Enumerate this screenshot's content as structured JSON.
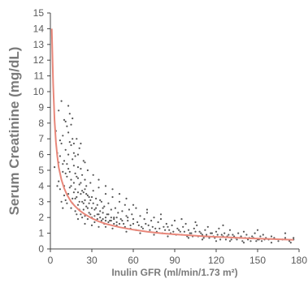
{
  "chart_data": {
    "type": "scatter",
    "title": "",
    "xlabel": "Inulin GFR (ml/min/1.73 m²)",
    "ylabel": "Serum Creatinine (mg/dL)",
    "xlim": [
      0,
      180
    ],
    "ylim": [
      0,
      15
    ],
    "x_ticks": [
      0,
      30,
      60,
      90,
      120,
      150,
      180
    ],
    "y_ticks": [
      0,
      1,
      2,
      3,
      4,
      5,
      6,
      7,
      8,
      9,
      10,
      11,
      12,
      13,
      14,
      15
    ],
    "grid": false,
    "legend": "none",
    "series": [
      {
        "type": "scatter",
        "color": "#555555",
        "points": [
          [
            3,
            5.2
          ],
          [
            4,
            7.5
          ],
          [
            5,
            6.1
          ],
          [
            6,
            4.3
          ],
          [
            6,
            8.8
          ],
          [
            7,
            5.9
          ],
          [
            7,
            3.8
          ],
          [
            8,
            9.4
          ],
          [
            8,
            6.7
          ],
          [
            9,
            4.9
          ],
          [
            9,
            7.2
          ],
          [
            10,
            5.6
          ],
          [
            10,
            3.4
          ],
          [
            11,
            8.1
          ],
          [
            11,
            6.3
          ],
          [
            12,
            4.6
          ],
          [
            12,
            2.9
          ],
          [
            13,
            7.4
          ],
          [
            13,
            5.1
          ],
          [
            14,
            3.9
          ],
          [
            14,
            6.8
          ],
          [
            15,
            4.4
          ],
          [
            15,
            2.6
          ],
          [
            16,
            5.7
          ],
          [
            16,
            8.3
          ],
          [
            17,
            3.6
          ],
          [
            17,
            6.1
          ],
          [
            18,
            4.8
          ],
          [
            18,
            2.4
          ],
          [
            19,
            7.0
          ],
          [
            19,
            3.3
          ],
          [
            20,
            5.2
          ],
          [
            20,
            2.8
          ],
          [
            21,
            4.1
          ],
          [
            21,
            6.4
          ],
          [
            22,
            3.5
          ],
          [
            22,
            2.2
          ],
          [
            23,
            4.7
          ],
          [
            23,
            3.0
          ],
          [
            24,
            5.6
          ],
          [
            24,
            2.5
          ],
          [
            25,
            3.8
          ],
          [
            25,
            4.4
          ],
          [
            26,
            2.7
          ],
          [
            27,
            3.4
          ],
          [
            27,
            5.0
          ],
          [
            28,
            2.3
          ],
          [
            29,
            3.1
          ],
          [
            29,
            4.2
          ],
          [
            30,
            2.6
          ],
          [
            31,
            3.7
          ],
          [
            32,
            2.1
          ],
          [
            33,
            3.2
          ],
          [
            34,
            2.8
          ],
          [
            35,
            3.9
          ],
          [
            36,
            2.4
          ],
          [
            37,
            3.0
          ],
          [
            38,
            1.9
          ],
          [
            39,
            2.7
          ],
          [
            40,
            3.5
          ],
          [
            41,
            2.2
          ],
          [
            42,
            2.9
          ],
          [
            43,
            1.8
          ],
          [
            44,
            2.5
          ],
          [
            45,
            3.3
          ],
          [
            46,
            2.0
          ],
          [
            47,
            2.6
          ],
          [
            48,
            1.7
          ],
          [
            49,
            2.3
          ],
          [
            50,
            3.0
          ],
          [
            51,
            1.9
          ],
          [
            52,
            2.4
          ],
          [
            53,
            1.6
          ],
          [
            54,
            2.8
          ],
          [
            55,
            2.1
          ],
          [
            56,
            1.8
          ],
          [
            57,
            2.5
          ],
          [
            58,
            1.5
          ],
          [
            59,
            2.2
          ],
          [
            60,
            1.9
          ],
          [
            62,
            2.6
          ],
          [
            63,
            1.7
          ],
          [
            65,
            2.1
          ],
          [
            66,
            1.4
          ],
          [
            68,
            1.9
          ],
          [
            70,
            2.3
          ],
          [
            71,
            1.5
          ],
          [
            73,
            1.8
          ],
          [
            75,
            2.0
          ],
          [
            76,
            1.3
          ],
          [
            78,
            1.7
          ],
          [
            80,
            1.9
          ],
          [
            82,
            1.4
          ],
          [
            84,
            1.6
          ],
          [
            86,
            1.2
          ],
          [
            88,
            1.5
          ],
          [
            90,
            1.8
          ],
          [
            92,
            1.3
          ],
          [
            94,
            1.1
          ],
          [
            96,
            1.4
          ],
          [
            98,
            1.6
          ],
          [
            100,
            1.2
          ],
          [
            102,
            1.0
          ],
          [
            104,
            1.3
          ],
          [
            106,
            1.5
          ],
          [
            108,
            1.1
          ],
          [
            110,
            0.9
          ],
          [
            112,
            1.2
          ],
          [
            114,
            1.4
          ],
          [
            116,
            1.0
          ],
          [
            118,
            0.8
          ],
          [
            120,
            1.1
          ],
          [
            122,
            1.3
          ],
          [
            124,
            0.9
          ],
          [
            126,
            1.0
          ],
          [
            128,
            0.8
          ],
          [
            130,
            1.2
          ],
          [
            132,
            0.9
          ],
          [
            134,
            0.7
          ],
          [
            136,
            1.0
          ],
          [
            138,
            0.8
          ],
          [
            140,
            1.1
          ],
          [
            142,
            0.9
          ],
          [
            144,
            0.7
          ],
          [
            146,
            0.8
          ],
          [
            148,
            1.0
          ],
          [
            150,
            0.6
          ],
          [
            152,
            0.8
          ],
          [
            154,
            0.9
          ],
          [
            156,
            0.7
          ],
          [
            158,
            0.6
          ],
          [
            160,
            0.8
          ],
          [
            162,
            0.7
          ],
          [
            165,
            0.5
          ],
          [
            168,
            0.6
          ],
          [
            170,
            0.7
          ],
          [
            173,
            0.5
          ],
          [
            176,
            0.6
          ],
          [
            176,
            0.7
          ],
          [
            174,
            0.4
          ],
          [
            15,
            4.0
          ],
          [
            16,
            3.2
          ],
          [
            18,
            3.8
          ],
          [
            19,
            2.2
          ],
          [
            20,
            4.5
          ],
          [
            21,
            3.0
          ],
          [
            22,
            5.1
          ],
          [
            23,
            2.0
          ],
          [
            24,
            3.6
          ],
          [
            25,
            2.1
          ],
          [
            26,
            4.0
          ],
          [
            27,
            1.9
          ],
          [
            28,
            3.3
          ],
          [
            30,
            2.0
          ],
          [
            31,
            2.9
          ],
          [
            32,
            1.7
          ],
          [
            33,
            2.6
          ],
          [
            34,
            1.9
          ],
          [
            35,
            2.2
          ],
          [
            36,
            3.1
          ],
          [
            37,
            1.8
          ],
          [
            38,
            2.6
          ],
          [
            39,
            1.6
          ],
          [
            40,
            2.0
          ],
          [
            42,
            1.7
          ],
          [
            44,
            1.8
          ],
          [
            46,
            1.6
          ],
          [
            48,
            2.0
          ],
          [
            50,
            1.6
          ],
          [
            52,
            1.8
          ],
          [
            54,
            1.4
          ],
          [
            56,
            2.0
          ],
          [
            58,
            1.3
          ],
          [
            60,
            1.6
          ],
          [
            62,
            1.2
          ],
          [
            64,
            1.5
          ],
          [
            67,
            1.3
          ],
          [
            69,
            1.6
          ],
          [
            72,
            1.2
          ],
          [
            74,
            1.4
          ],
          [
            77,
            1.1
          ],
          [
            79,
            1.3
          ],
          [
            81,
            1.0
          ],
          [
            83,
            1.2
          ],
          [
            85,
            1.4
          ],
          [
            87,
            1.0
          ],
          [
            89,
            1.1
          ],
          [
            91,
            0.9
          ],
          [
            93,
            1.2
          ],
          [
            95,
            0.9
          ],
          [
            97,
            1.1
          ],
          [
            99,
            0.8
          ],
          [
            101,
            1.0
          ],
          [
            103,
            0.8
          ],
          [
            105,
            1.1
          ],
          [
            107,
            0.8
          ],
          [
            109,
            1.0
          ],
          [
            111,
            0.7
          ],
          [
            113,
            0.9
          ],
          [
            115,
            0.7
          ],
          [
            117,
            1.0
          ],
          [
            119,
            0.7
          ],
          [
            121,
            0.9
          ],
          [
            123,
            0.6
          ],
          [
            125,
            0.8
          ],
          [
            127,
            0.6
          ],
          [
            129,
            0.9
          ],
          [
            131,
            0.6
          ],
          [
            133,
            0.8
          ],
          [
            135,
            0.6
          ],
          [
            137,
            0.7
          ],
          [
            139,
            0.5
          ],
          [
            141,
            0.7
          ],
          [
            143,
            0.6
          ],
          [
            145,
            0.5
          ],
          [
            147,
            0.7
          ],
          [
            149,
            0.5
          ],
          [
            151,
            0.6
          ],
          [
            153,
            0.5
          ],
          [
            155,
            0.6
          ],
          [
            10,
            4.0
          ],
          [
            11,
            3.1
          ],
          [
            12,
            5.4
          ],
          [
            13,
            3.5
          ],
          [
            14,
            4.9
          ],
          [
            15,
            6.6
          ],
          [
            16,
            2.9
          ],
          [
            17,
            4.2
          ],
          [
            18,
            5.9
          ],
          [
            19,
            4.6
          ],
          [
            20,
            3.6
          ],
          [
            21,
            2.5
          ],
          [
            22,
            4.2
          ],
          [
            23,
            3.7
          ],
          [
            24,
            2.9
          ],
          [
            25,
            3.1
          ],
          [
            26,
            3.5
          ],
          [
            27,
            2.6
          ],
          [
            28,
            2.9
          ],
          [
            29,
            2.2
          ],
          [
            30,
            3.3
          ],
          [
            32,
            2.5
          ],
          [
            34,
            2.2
          ],
          [
            36,
            2.0
          ],
          [
            38,
            2.3
          ],
          [
            40,
            1.8
          ],
          [
            42,
            2.2
          ],
          [
            44,
            2.0
          ],
          [
            46,
            1.9
          ],
          [
            48,
            1.5
          ],
          [
            12,
            7.8
          ],
          [
            14,
            8.6
          ],
          [
            16,
            7.0
          ],
          [
            13,
            6.0
          ],
          [
            17,
            5.3
          ],
          [
            20,
            6.0
          ],
          [
            22,
            6.7
          ],
          [
            25,
            5.5
          ],
          [
            31,
            4.7
          ],
          [
            35,
            4.4
          ],
          [
            40,
            4.0
          ],
          [
            45,
            3.8
          ],
          [
            50,
            3.5
          ],
          [
            55,
            3.2
          ],
          [
            60,
            2.8
          ],
          [
            70,
            2.5
          ],
          [
            80,
            2.2
          ],
          [
            95,
            1.9
          ],
          [
            105,
            1.7
          ],
          [
            125,
            1.5
          ],
          [
            150,
            1.2
          ],
          [
            170,
            1.0
          ],
          [
            20,
            1.9
          ],
          [
            25,
            1.6
          ],
          [
            30,
            1.5
          ],
          [
            35,
            1.4
          ],
          [
            40,
            1.4
          ],
          [
            45,
            1.3
          ],
          [
            55,
            1.1
          ],
          [
            65,
            1.0
          ],
          [
            75,
            0.9
          ],
          [
            85,
            0.8
          ],
          [
            100,
            0.7
          ],
          [
            110,
            0.6
          ],
          [
            120,
            0.5
          ],
          [
            130,
            0.5
          ],
          [
            140,
            0.4
          ],
          [
            160,
            0.4
          ],
          [
            8,
            3.0
          ],
          [
            9,
            2.6
          ],
          [
            11,
            4.8
          ],
          [
            7,
            6.9
          ],
          [
            6,
            5.5
          ],
          [
            5,
            4.0
          ],
          [
            9,
            5.4
          ],
          [
            10,
            8.2
          ],
          [
            13,
            9.1
          ],
          [
            15,
            7.9
          ],
          [
            17,
            6.7
          ],
          [
            18,
            3.2
          ]
        ]
      },
      {
        "type": "line",
        "color": "#e8877a",
        "points": [
          [
            1,
            14.0
          ],
          [
            2,
            10.5
          ],
          [
            3,
            8.2
          ],
          [
            4,
            6.8
          ],
          [
            5,
            5.9
          ],
          [
            6,
            5.2
          ],
          [
            8,
            4.4
          ],
          [
            10,
            3.85
          ],
          [
            12,
            3.45
          ],
          [
            15,
            3.0
          ],
          [
            18,
            2.7
          ],
          [
            21,
            2.45
          ],
          [
            25,
            2.2
          ],
          [
            30,
            1.95
          ],
          [
            35,
            1.75
          ],
          [
            40,
            1.6
          ],
          [
            50,
            1.38
          ],
          [
            60,
            1.22
          ],
          [
            70,
            1.1
          ],
          [
            80,
            1.0
          ],
          [
            90,
            0.93
          ],
          [
            100,
            0.87
          ],
          [
            110,
            0.81
          ],
          [
            120,
            0.77
          ],
          [
            130,
            0.73
          ],
          [
            140,
            0.69
          ],
          [
            150,
            0.66
          ],
          [
            160,
            0.63
          ],
          [
            170,
            0.6
          ],
          [
            176,
            0.58
          ]
        ]
      }
    ]
  }
}
